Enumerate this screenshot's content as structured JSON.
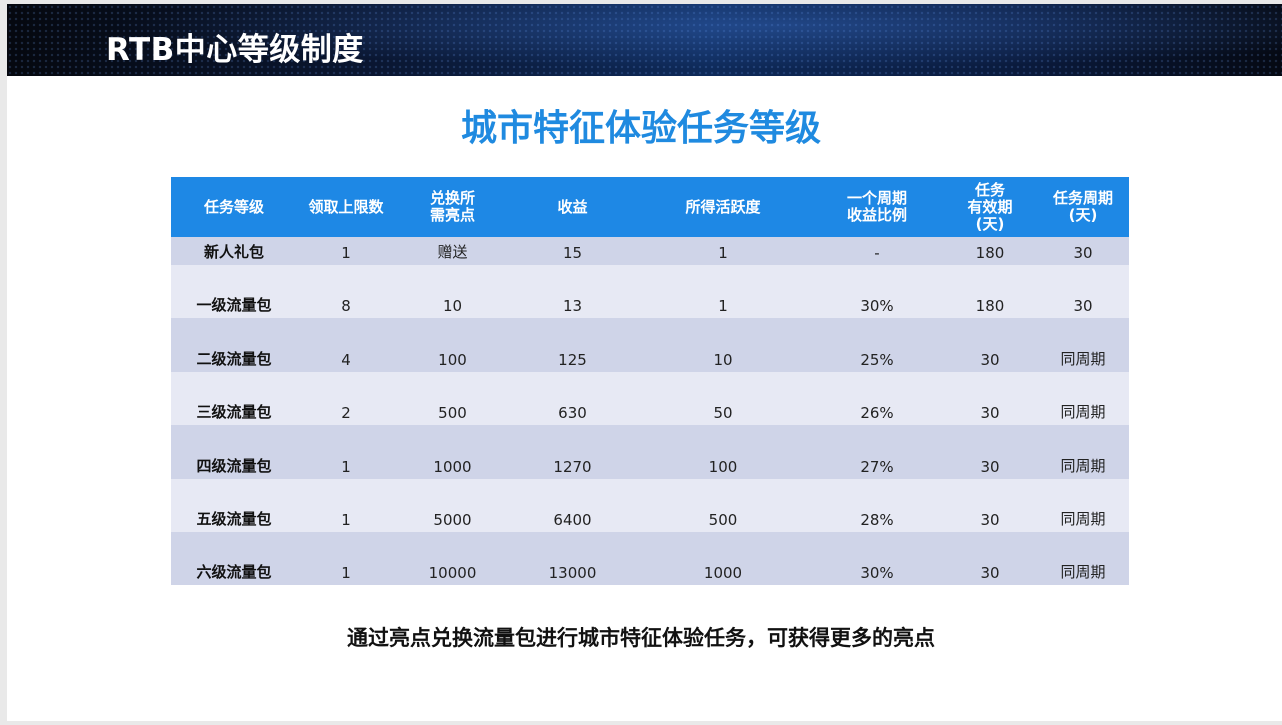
{
  "header": {
    "title": "RTB中心等级制度",
    "colors": {
      "band_dark": "#05080f",
      "band_blue": "#0e2a5a"
    }
  },
  "main": {
    "title": "城市特征体验任务等级",
    "title_color": "#1f8ae0"
  },
  "table": {
    "header_color": "#1e88e5",
    "columns": [
      "任务等级",
      "领取上限数",
      "兑换所\n需亮点",
      "收益",
      "所得活跃度",
      "一个周期\n收益比例",
      "任务\n有效期\n(天)",
      "任务周期\n(天)"
    ],
    "rows": [
      [
        "新人礼包",
        "1",
        "赠送",
        "15",
        "1",
        "-",
        "180",
        "30"
      ],
      [
        "一级流量包",
        "8",
        "10",
        "13",
        "1",
        "30%",
        "180",
        "30"
      ],
      [
        "二级流量包",
        "4",
        "100",
        "125",
        "10",
        "25%",
        "30",
        "同周期"
      ],
      [
        "三级流量包",
        "2",
        "500",
        "630",
        "50",
        "26%",
        "30",
        "同周期"
      ],
      [
        "四级流量包",
        "1",
        "1000",
        "1270",
        "100",
        "27%",
        "30",
        "同周期"
      ],
      [
        "五级流量包",
        "1",
        "5000",
        "6400",
        "500",
        "28%",
        "30",
        "同周期"
      ],
      [
        "六级流量包",
        "1",
        "10000",
        "13000",
        "1000",
        "30%",
        "30",
        "同周期"
      ]
    ]
  },
  "footer": {
    "text": "通过亮点兑换流量包进行城市特征体验任务，可获得更多的亮点"
  }
}
